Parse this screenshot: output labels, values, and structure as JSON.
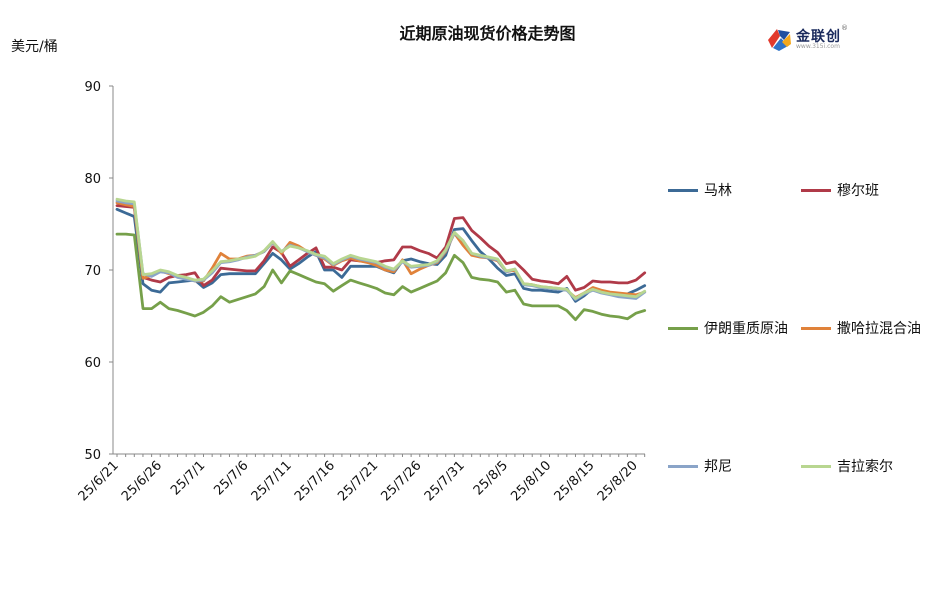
{
  "chart_data": {
    "type": "line",
    "title": "近期原油现货价格走势图",
    "ylabel": "美元/桶",
    "xlabel": "",
    "ylim": [
      50,
      90
    ],
    "yticks": [
      50,
      60,
      70,
      80,
      90
    ],
    "categories": [
      "25/6/21",
      "25/6/22",
      "25/6/23",
      "25/6/24",
      "25/6/25",
      "25/6/26",
      "25/6/27",
      "25/6/28",
      "25/6/29",
      "25/6/30",
      "25/7/1",
      "25/7/2",
      "25/7/3",
      "25/7/4",
      "25/7/5",
      "25/7/6",
      "25/7/7",
      "25/7/8",
      "25/7/9",
      "25/7/10",
      "25/7/11",
      "25/7/12",
      "25/7/13",
      "25/7/14",
      "25/7/15",
      "25/7/16",
      "25/7/17",
      "25/7/18",
      "25/7/19",
      "25/7/20",
      "25/7/21",
      "25/7/22",
      "25/7/23",
      "25/7/24",
      "25/7/25",
      "25/7/26",
      "25/7/27",
      "25/7/28",
      "25/7/29",
      "25/7/30",
      "25/7/31",
      "25/8/1",
      "25/8/2",
      "25/8/3",
      "25/8/4",
      "25/8/5",
      "25/8/6",
      "25/8/7",
      "25/8/8",
      "25/8/9",
      "25/8/10",
      "25/8/11",
      "25/8/12",
      "25/8/13",
      "25/8/14",
      "25/8/15",
      "25/8/16",
      "25/8/17",
      "25/8/18",
      "25/8/19",
      "25/8/20",
      "25/8/21"
    ],
    "xtick_labels": [
      "25/6/21",
      "25/6/26",
      "25/7/1",
      "25/7/6",
      "25/7/11",
      "25/7/16",
      "25/7/21",
      "25/7/26",
      "25/7/31",
      "25/8/5",
      "25/8/10",
      "25/8/15",
      "25/8/20"
    ],
    "series": [
      {
        "name": "马林",
        "color": "#3c6a96",
        "values": [
          76.6,
          76.2,
          75.8,
          68.5,
          67.8,
          67.6,
          68.6,
          68.7,
          68.8,
          68.9,
          68.1,
          68.6,
          69.5,
          69.6,
          69.6,
          69.6,
          69.6,
          70.7,
          71.8,
          71.1,
          70.1,
          70.7,
          71.4,
          72.0,
          70.0,
          70.0,
          69.2,
          70.4,
          70.4,
          70.4,
          70.4,
          70.0,
          69.7,
          71.0,
          71.2,
          70.9,
          70.7,
          70.6,
          71.6,
          74.4,
          74.5,
          73.2,
          72.0,
          71.2,
          70.2,
          69.4,
          69.6,
          68.0,
          67.8,
          67.8,
          67.7,
          67.6,
          68.0,
          66.6,
          67.2,
          68.0,
          67.7,
          67.5,
          67.4,
          67.4,
          67.8,
          68.3
        ]
      },
      {
        "name": "穆尔班",
        "color": "#b03a48",
        "values": [
          77.0,
          76.9,
          76.8,
          69.2,
          68.9,
          68.7,
          69.2,
          69.4,
          69.5,
          69.7,
          68.3,
          68.9,
          70.2,
          70.1,
          70.0,
          69.9,
          69.9,
          71.0,
          72.5,
          71.9,
          70.4,
          71.1,
          71.8,
          72.4,
          70.3,
          70.3,
          70.0,
          71.1,
          71.0,
          70.9,
          70.8,
          71.0,
          71.1,
          72.5,
          72.5,
          72.1,
          71.8,
          71.3,
          72.5,
          75.6,
          75.7,
          74.3,
          73.5,
          72.6,
          71.9,
          70.7,
          70.9,
          70.0,
          69.0,
          68.8,
          68.7,
          68.5,
          69.3,
          67.8,
          68.1,
          68.8,
          68.7,
          68.7,
          68.6,
          68.6,
          68.9,
          69.7
        ]
      },
      {
        "name": "伊朗重质原油",
        "color": "#76a04a",
        "values": [
          73.9,
          73.9,
          73.8,
          65.8,
          65.8,
          66.5,
          65.8,
          65.6,
          65.3,
          65.0,
          65.4,
          66.1,
          67.1,
          66.5,
          66.8,
          67.1,
          67.4,
          68.2,
          70.0,
          68.6,
          69.9,
          69.5,
          69.1,
          68.7,
          68.5,
          67.7,
          68.3,
          68.9,
          68.6,
          68.3,
          68.0,
          67.5,
          67.3,
          68.2,
          67.6,
          68.0,
          68.4,
          68.8,
          69.7,
          71.6,
          70.8,
          69.2,
          69.0,
          68.9,
          68.7,
          67.6,
          67.8,
          66.3,
          66.1,
          66.1,
          66.1,
          66.1,
          65.6,
          64.6,
          65.7,
          65.5,
          65.2,
          65.0,
          64.9,
          64.7,
          65.3,
          65.6
        ]
      },
      {
        "name": "撒哈拉混合油",
        "color": "#e0823a",
        "values": [
          77.3,
          77.1,
          76.9,
          69.1,
          69.4,
          69.9,
          69.6,
          69.4,
          69.2,
          68.8,
          68.8,
          70.2,
          71.8,
          71.2,
          71.2,
          71.5,
          71.6,
          72.0,
          73.0,
          71.8,
          73.0,
          72.6,
          72.0,
          71.6,
          71.2,
          70.5,
          71.0,
          71.3,
          71.0,
          70.8,
          70.5,
          70.0,
          69.8,
          71.1,
          69.6,
          70.1,
          70.5,
          70.8,
          72.0,
          74.0,
          72.7,
          71.6,
          71.4,
          71.3,
          71.0,
          69.8,
          70.0,
          68.5,
          68.4,
          68.2,
          68.1,
          68.0,
          67.8,
          67.0,
          67.5,
          68.1,
          67.8,
          67.6,
          67.5,
          67.4,
          67.3,
          67.6
        ]
      },
      {
        "name": "邦尼",
        "color": "#8aa4c8",
        "values": [
          77.5,
          77.3,
          77.2,
          69.6,
          69.3,
          69.8,
          69.7,
          69.2,
          69.0,
          68.8,
          68.9,
          69.7,
          70.8,
          70.9,
          71.1,
          71.4,
          71.6,
          72.0,
          73.0,
          72.0,
          72.7,
          72.4,
          72.0,
          71.6,
          71.3,
          70.6,
          71.1,
          71.5,
          71.2,
          71.0,
          70.8,
          70.3,
          70.0,
          70.9,
          70.3,
          70.4,
          70.5,
          70.9,
          72.1,
          74.0,
          73.2,
          71.8,
          71.5,
          71.3,
          71.1,
          69.8,
          70.1,
          68.4,
          68.3,
          68.1,
          68.0,
          67.9,
          67.8,
          66.8,
          67.4,
          67.8,
          67.5,
          67.3,
          67.1,
          67.0,
          66.9,
          67.6
        ]
      },
      {
        "name": "吉拉索尔",
        "color": "#b8d690",
        "values": [
          77.7,
          77.5,
          77.4,
          69.5,
          69.6,
          70.0,
          69.8,
          69.4,
          69.2,
          68.9,
          69.0,
          69.9,
          70.9,
          71.0,
          71.2,
          71.3,
          71.5,
          72.1,
          73.1,
          72.0,
          72.6,
          72.4,
          72.1,
          71.7,
          71.5,
          70.7,
          71.2,
          71.6,
          71.3,
          71.1,
          70.9,
          70.4,
          70.1,
          71.0,
          70.4,
          70.5,
          70.6,
          71.0,
          72.2,
          74.1,
          73.2,
          71.8,
          71.6,
          71.4,
          71.2,
          69.9,
          70.1,
          68.5,
          68.4,
          68.2,
          68.1,
          68.0,
          67.9,
          66.9,
          67.5,
          67.9,
          67.6,
          67.4,
          67.3,
          67.2,
          67.1,
          67.7
        ]
      }
    ],
    "legend_position": "right",
    "grid": false
  },
  "logo": {
    "brand_text": "金联创",
    "url_text": "www.315i.com",
    "reg_mark": "®"
  }
}
